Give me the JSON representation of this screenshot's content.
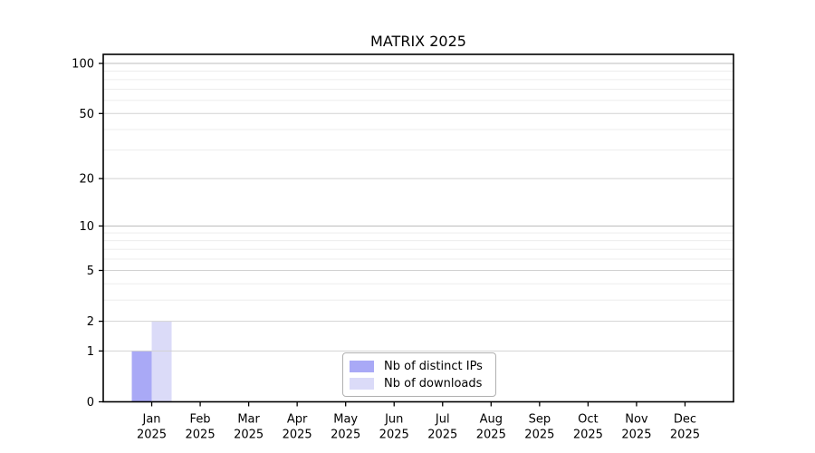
{
  "chart_data": {
    "type": "bar",
    "title": "MATRIX 2025",
    "categories": [
      "Jan",
      "Feb",
      "Mar",
      "Apr",
      "May",
      "Jun",
      "Jul",
      "Aug",
      "Sep",
      "Oct",
      "Nov",
      "Dec"
    ],
    "tick_year": "2025",
    "series": [
      {
        "name": "Nb of distinct IPs",
        "color": "#a9a9f6",
        "values": [
          1,
          0,
          0,
          0,
          0,
          0,
          0,
          0,
          0,
          0,
          0,
          0
        ]
      },
      {
        "name": "Nb of downloads",
        "color": "#dbdbf8",
        "values": [
          2,
          0,
          0,
          0,
          0,
          0,
          0,
          0,
          0,
          0,
          0,
          0
        ]
      }
    ],
    "ylim": [
      0,
      100
    ],
    "yscale": "log10(1+x)",
    "ytick_values": [
      0,
      1,
      2,
      5,
      10,
      20,
      50,
      100
    ],
    "ytick_labels": [
      "0",
      "1",
      "2",
      "5",
      "10",
      "20",
      "50",
      "100"
    ],
    "yminor_values": [
      3,
      4,
      6,
      7,
      8,
      9,
      30,
      40,
      60,
      70,
      80,
      90
    ],
    "grid": "horizontal major+minor",
    "legend_position": "lower center",
    "colors": {
      "decade_grid": "#bdbdbd",
      "major_grid": "#d2d2d2",
      "minor_grid": "#ededed",
      "spine": "#000000",
      "tick_text": "#000000",
      "background": "#ffffff"
    }
  }
}
